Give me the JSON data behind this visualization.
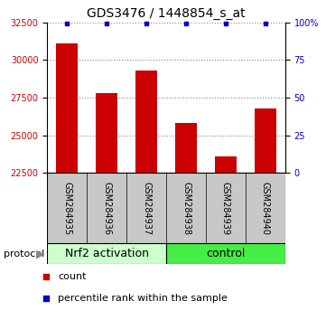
{
  "title": "GDS3476 / 1448854_s_at",
  "samples": [
    "GSM284935",
    "GSM284936",
    "GSM284937",
    "GSM284938",
    "GSM284939",
    "GSM284940"
  ],
  "counts": [
    31100,
    27800,
    29300,
    25800,
    23600,
    26800
  ],
  "percentile_ranks": [
    99,
    99,
    99,
    99,
    99,
    99
  ],
  "ylim_left": [
    22500,
    32500
  ],
  "ylim_right": [
    0,
    100
  ],
  "yticks_left": [
    22500,
    25000,
    27500,
    30000,
    32500
  ],
  "yticks_right": [
    0,
    25,
    50,
    75,
    100
  ],
  "ytick_labels_right": [
    "0",
    "25",
    "50",
    "75",
    "100%"
  ],
  "bar_color": "#cc0000",
  "dot_color": "#0000cc",
  "bar_bottom": 22500,
  "group1_label": "Nrf2 activation",
  "group2_label": "control",
  "group1_indices": [
    0,
    1,
    2
  ],
  "group2_indices": [
    3,
    4,
    5
  ],
  "group1_color": "#ccffcc",
  "group2_color": "#44ee44",
  "sample_bg_color": "#c8c8c8",
  "protocol_label": "protocol",
  "legend_count_label": "count",
  "legend_pct_label": "percentile rank within the sample",
  "title_fontsize": 10,
  "tick_label_color_left": "#cc0000",
  "tick_label_color_right": "#0000cc",
  "dotted_line_color": "#888888",
  "group_label_fontsize": 9,
  "legend_fontsize": 8,
  "sample_label_fontsize": 7,
  "protocol_fontsize": 8
}
